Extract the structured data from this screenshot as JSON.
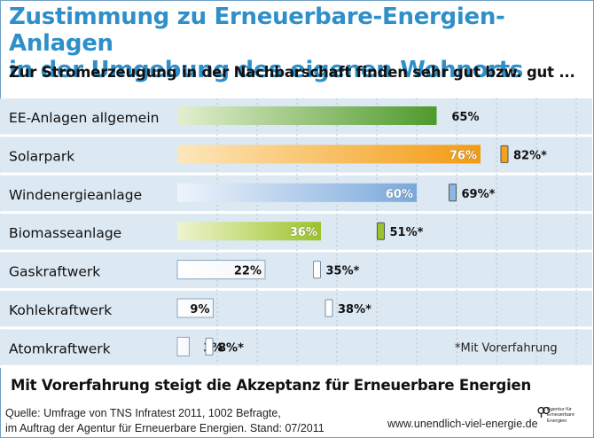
{
  "title_line1": "Zustimmung zu Erneuerbare-Energien-Anlagen",
  "title_line2": "in der Umgebung des eigenen Wohnorts",
  "subtitle": "Zur Stromerzeugung in der Nachbarschaft finden sehr gut bzw. gut ...",
  "bottom_statement": "Mit Vorerfahrung steigt die Akzeptanz für Erneuerbare Energien",
  "source_line1": "Quelle: Umfrage von TNS Infratest 2011, 1002 Befragte,",
  "source_line2": "im Auftrag der Agentur für Erneuerbare Energien. Stand: 07/2011",
  "website": "www.unendlich-viel-energie.de",
  "logo_text": [
    "Agentur für",
    "Erneuerbare",
    "Energien"
  ],
  "colors": {
    "title": "#2e8fc9",
    "row_band": "#dce8f2",
    "EE_general": "#6aa43a",
    "solar": "#f5a21e",
    "wind": "#8db6e2",
    "biomass": "#a8c93a",
    "conventional": "#ffffff"
  },
  "chart_data": {
    "type": "bar",
    "orientation": "horizontal",
    "categories": [
      "EE-Anlagen allgemein",
      "Solarpark",
      "Windenergieanlage",
      "Biomasseanlage",
      "Gaskraftwerk",
      "Kohlekraftwerk",
      "Atomkraftwerk"
    ],
    "series": [
      {
        "values": [
          65,
          76,
          60,
          36,
          22,
          9,
          3
        ]
      },
      {
        "name": "*Mit Vorerfahrung",
        "values": [
          null,
          82,
          69,
          51,
          35,
          38,
          8
        ]
      }
    ],
    "value_labels": [
      "65%",
      "76%",
      "60%",
      "36%",
      "22%",
      "9%",
      "3%"
    ],
    "vorerfahrung_labels": [
      null,
      "82%*",
      "69%*",
      "51%*",
      "35%*",
      "38%*",
      "8%*"
    ],
    "legend_note": "*Mit Vorerfahrung",
    "xlim": [
      0,
      100
    ],
    "grid": "vertical dashed"
  }
}
